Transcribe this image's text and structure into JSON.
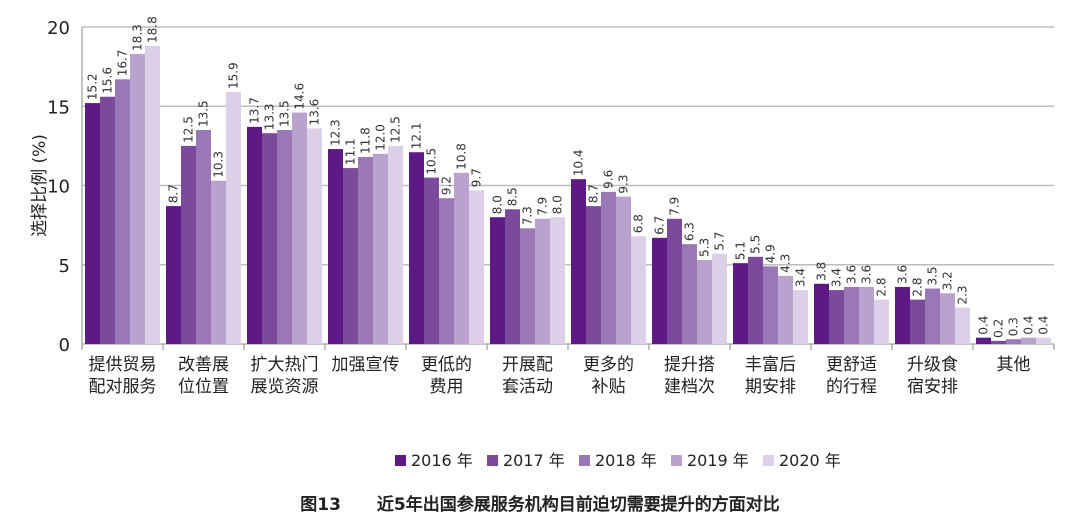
{
  "chart_data": {
    "type": "bar",
    "ylabel": "选择比例 (%)",
    "ylim": [
      0,
      20
    ],
    "yticks": [
      0,
      5,
      10,
      15,
      20
    ],
    "grid": true,
    "legend_position": "bottom",
    "categories": [
      "提供贸易配对服务",
      "改善展位位置",
      "扩大热门展览资源",
      "加强宣传",
      "更低的费用",
      "开展配套活动",
      "更多的补贴",
      "提升搭建档次",
      "丰富后期安排",
      "更舒适的行程",
      "升级食宿安排",
      "其他"
    ],
    "series": [
      {
        "name": "2016 年",
        "color": "#5e1a84",
        "values": [
          15.2,
          8.7,
          13.7,
          12.3,
          12.1,
          8.0,
          10.4,
          6.7,
          5.1,
          3.8,
          3.6,
          0.4
        ]
      },
      {
        "name": "2017 年",
        "color": "#7b4a9b",
        "values": [
          15.6,
          12.5,
          13.3,
          11.1,
          10.5,
          8.5,
          8.7,
          7.9,
          5.5,
          3.4,
          2.8,
          0.2
        ]
      },
      {
        "name": "2018 年",
        "color": "#9a78b6",
        "values": [
          16.7,
          13.5,
          13.5,
          11.8,
          9.2,
          7.3,
          9.6,
          6.3,
          4.9,
          3.6,
          3.5,
          0.3
        ]
      },
      {
        "name": "2019 年",
        "color": "#b9a2cd",
        "values": [
          18.3,
          10.3,
          14.6,
          12.0,
          10.8,
          7.9,
          9.3,
          5.3,
          4.3,
          3.6,
          3.2,
          0.4
        ]
      },
      {
        "name": "2020 年",
        "color": "#dcd0e8",
        "values": [
          18.8,
          15.9,
          13.6,
          12.5,
          9.7,
          8.0,
          6.8,
          5.7,
          3.4,
          2.8,
          2.3,
          0.4
        ]
      }
    ]
  },
  "caption": {
    "figure_number": "图13",
    "title": "近5年出国参展服务机构目前迫切需要提升的方面对比"
  }
}
